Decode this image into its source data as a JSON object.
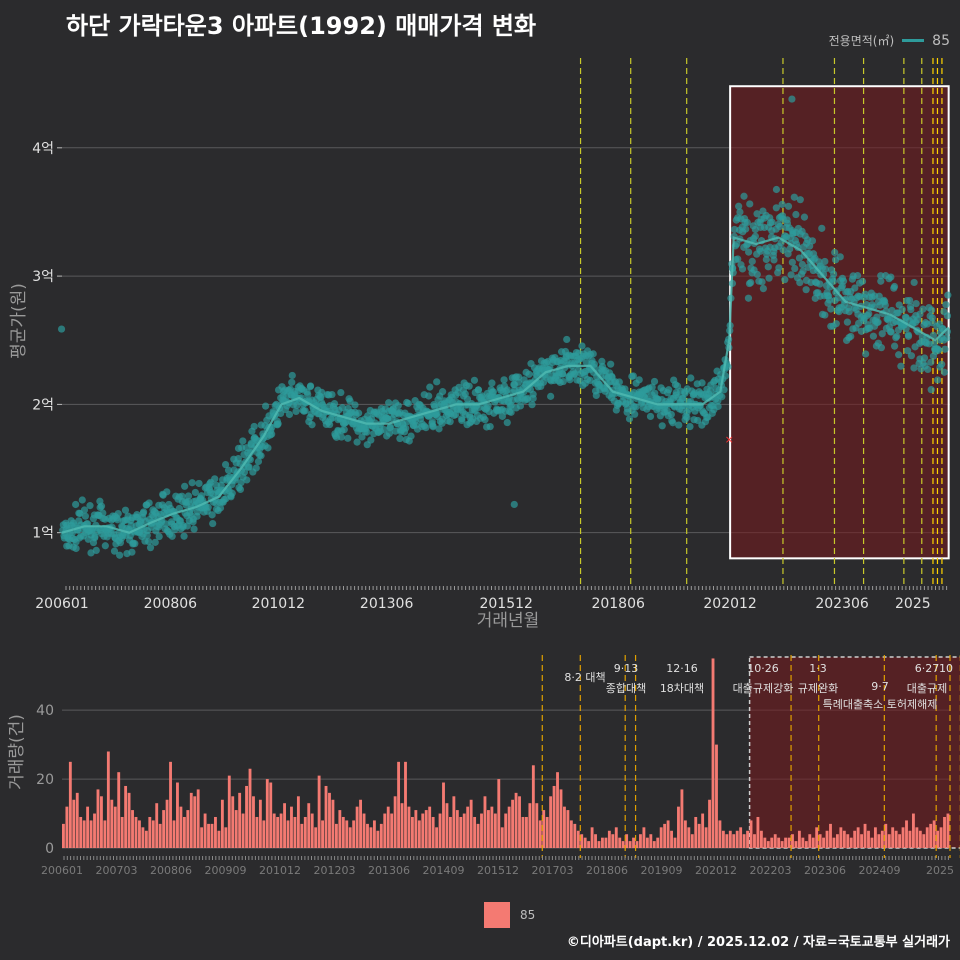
{
  "title": "하단 가락타운3 아파트(1992) 매매가격 변화",
  "legend_top": {
    "label": "전용면적(㎡)",
    "value": "85",
    "color": "#2e9b9b"
  },
  "legend_bottom": {
    "value": "85",
    "color": "#f47a72"
  },
  "credit": "©디아파트(dapt.kr) / 2025.12.02 / 자료=국토교통부 실거래가",
  "chart_data": [
    {
      "type": "scatter",
      "title": "하단 가락타운3 아파트(1992) 매매가격 변화",
      "xlabel": "거래년월",
      "ylabel": "평균가(원)",
      "xlim": [
        2006.0,
        2025.83
      ],
      "ylim": [
        0.6,
        4.7
      ],
      "y_unit": "억",
      "y_ticks": [
        1,
        2,
        3,
        4
      ],
      "y_tick_labels": [
        "1억",
        "2억",
        "3억",
        "4억"
      ],
      "x_ticks": [
        2006.0,
        2008.42,
        2010.83,
        2013.25,
        2015.92,
        2018.42,
        2020.92,
        2023.42,
        2025.0
      ],
      "x_tick_labels": [
        "200601",
        "200806",
        "201012",
        "201306",
        "201512",
        "201806",
        "202012",
        "202306",
        "2025"
      ],
      "trend": [
        [
          2006.0,
          1.0
        ],
        [
          2006.5,
          1.05
        ],
        [
          2007.0,
          1.05
        ],
        [
          2007.5,
          1.0
        ],
        [
          2008.0,
          1.08
        ],
        [
          2008.5,
          1.15
        ],
        [
          2009.0,
          1.2
        ],
        [
          2009.5,
          1.28
        ],
        [
          2010.0,
          1.5
        ],
        [
          2010.5,
          1.75
        ],
        [
          2010.9,
          2.0
        ],
        [
          2011.3,
          2.05
        ],
        [
          2011.8,
          1.95
        ],
        [
          2012.3,
          1.9
        ],
        [
          2012.8,
          1.85
        ],
        [
          2013.3,
          1.85
        ],
        [
          2013.8,
          1.9
        ],
        [
          2014.3,
          1.95
        ],
        [
          2014.8,
          2.0
        ],
        [
          2015.3,
          2.0
        ],
        [
          2015.8,
          2.05
        ],
        [
          2016.3,
          2.1
        ],
        [
          2016.8,
          2.25
        ],
        [
          2017.3,
          2.3
        ],
        [
          2017.8,
          2.3
        ],
        [
          2018.3,
          2.1
        ],
        [
          2018.8,
          2.05
        ],
        [
          2019.3,
          2.0
        ],
        [
          2019.8,
          2.0
        ],
        [
          2020.3,
          2.0
        ],
        [
          2020.7,
          2.1
        ],
        [
          2020.9,
          2.5
        ],
        [
          2021.0,
          3.3
        ],
        [
          2021.5,
          3.25
        ],
        [
          2022.0,
          3.3
        ],
        [
          2022.5,
          3.2
        ],
        [
          2023.0,
          3.0
        ],
        [
          2023.5,
          2.8
        ],
        [
          2024.0,
          2.75
        ],
        [
          2024.5,
          2.7
        ],
        [
          2025.0,
          2.6
        ],
        [
          2025.5,
          2.5
        ],
        [
          2025.8,
          2.6
        ]
      ],
      "outliers": [
        [
          2022.3,
          4.38
        ],
        [
          2016.1,
          1.22
        ],
        [
          2020.9,
          1.73
        ]
      ],
      "highlight_box": {
        "x": [
          2020.92,
          2025.8
        ],
        "y": [
          0.8,
          4.48
        ]
      },
      "policy_lines": [
        2017.58,
        2018.7,
        2019.95,
        2022.1,
        2023.25,
        2023.9,
        2024.8,
        2025.2,
        2025.45,
        2025.55,
        2025.65
      ],
      "grid": true
    },
    {
      "type": "bar",
      "ylabel": "거래량(건)",
      "ylim": [
        0,
        56
      ],
      "y_ticks": [
        0,
        20,
        40
      ],
      "y_tick_labels": [
        "0",
        "20",
        "40"
      ],
      "x_tick_labels": [
        "200601",
        "200703",
        "200806",
        "200909",
        "201012",
        "201203",
        "201306",
        "201409",
        "201512",
        "201703",
        "201806",
        "201909",
        "202012",
        "202203",
        "202306",
        "202409",
        "2025"
      ],
      "values": [
        7,
        12,
        25,
        14,
        16,
        9,
        8,
        12,
        8,
        10,
        17,
        15,
        8,
        28,
        14,
        12,
        22,
        9,
        18,
        16,
        11,
        9,
        8,
        6,
        5,
        9,
        8,
        13,
        7,
        11,
        14,
        25,
        8,
        19,
        12,
        9,
        11,
        16,
        15,
        17,
        6,
        10,
        7,
        7,
        9,
        5,
        14,
        6,
        21,
        15,
        11,
        16,
        10,
        18,
        23,
        15,
        9,
        14,
        8,
        20,
        19,
        10,
        9,
        10,
        13,
        8,
        12,
        9,
        15,
        7,
        9,
        13,
        10,
        6,
        21,
        8,
        18,
        16,
        14,
        7,
        11,
        9,
        8,
        6,
        8,
        12,
        14,
        10,
        7,
        6,
        8,
        5,
        7,
        10,
        12,
        10,
        15,
        25,
        13,
        25,
        12,
        9,
        11,
        8,
        10,
        11,
        12,
        9,
        6,
        10,
        19,
        13,
        9,
        15,
        11,
        9,
        10,
        12,
        14,
        9,
        7,
        10,
        15,
        11,
        12,
        10,
        20,
        6,
        10,
        12,
        14,
        16,
        15,
        9,
        9,
        13,
        24,
        13,
        8,
        11,
        9,
        15,
        18,
        22,
        17,
        12,
        11,
        8,
        7,
        5,
        4,
        3,
        2,
        6,
        4,
        2,
        3,
        3,
        5,
        4,
        6,
        3,
        2,
        4,
        2,
        3,
        2,
        4,
        6,
        3,
        4,
        2,
        3,
        6,
        7,
        8,
        5,
        3,
        12,
        17,
        8,
        6,
        4,
        9,
        7,
        10,
        6,
        14,
        55,
        30,
        8,
        5,
        4,
        5,
        4,
        5,
        6,
        4,
        5,
        8,
        4,
        9,
        5,
        3,
        2,
        3,
        4,
        3,
        2,
        3,
        3,
        4,
        2,
        5,
        3,
        2,
        4,
        3,
        6,
        4,
        3,
        5,
        7,
        3,
        4,
        6,
        5,
        4,
        3,
        5,
        6,
        4,
        7,
        5,
        3,
        6,
        4,
        5,
        7,
        4,
        6,
        5,
        4,
        6,
        8,
        5,
        10,
        6,
        5,
        4,
        6,
        7,
        8,
        5,
        6,
        9,
        10
      ],
      "highlight_box": {
        "from_index": 199,
        "to_index": 266
      },
      "policy_lines_idx": [
        139,
        150,
        163,
        166,
        211,
        219,
        238,
        253,
        257,
        260,
        263
      ],
      "annotations": [
        {
          "date": "8·2 대책",
          "name": ""
        },
        {
          "date": "9·13",
          "name": "종합대책"
        },
        {
          "date": "12·16",
          "name": "18차대책"
        },
        {
          "date": "10·26",
          "name": "대출규제강화"
        },
        {
          "date": "1·3",
          "name": "규제완화"
        },
        {
          "date": "9·7",
          "name": "특례대출축소 토허제해제"
        },
        {
          "date": "6·27",
          "name": "대출규제"
        },
        {
          "date": "10",
          "name": ""
        }
      ]
    }
  ]
}
